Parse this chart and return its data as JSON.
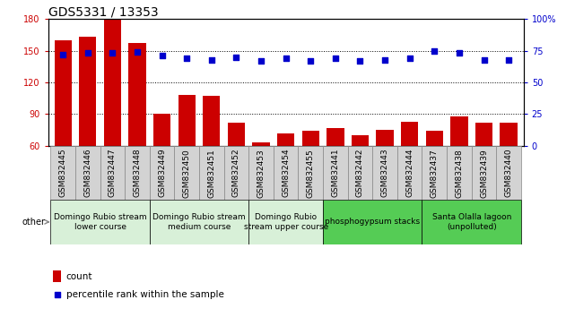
{
  "title": "GDS5331 / 13353",
  "samples": [
    "GSM832445",
    "GSM832446",
    "GSM832447",
    "GSM832448",
    "GSM832449",
    "GSM832450",
    "GSM832451",
    "GSM832452",
    "GSM832453",
    "GSM832454",
    "GSM832455",
    "GSM832441",
    "GSM832442",
    "GSM832443",
    "GSM832444",
    "GSM832437",
    "GSM832438",
    "GSM832439",
    "GSM832440"
  ],
  "counts": [
    160,
    163,
    180,
    157,
    90,
    108,
    107,
    82,
    63,
    72,
    74,
    77,
    70,
    75,
    83,
    74,
    88,
    82,
    82
  ],
  "percentiles": [
    72,
    73,
    73,
    74,
    71,
    69,
    68,
    70,
    67,
    69,
    67,
    69,
    67,
    68,
    69,
    75,
    73,
    68,
    68
  ],
  "ylim_left": [
    60,
    180
  ],
  "ylim_right": [
    0,
    100
  ],
  "yticks_left": [
    60,
    90,
    120,
    150,
    180
  ],
  "yticks_right": [
    0,
    25,
    50,
    75,
    100
  ],
  "groups": [
    {
      "label": "Domingo Rubio stream\nlower course",
      "start": 0,
      "end": 3,
      "color": "#d8f0d8"
    },
    {
      "label": "Domingo Rubio stream\nmedium course",
      "start": 4,
      "end": 7,
      "color": "#d8f0d8"
    },
    {
      "label": "Domingo Rubio\nstream upper course",
      "start": 8,
      "end": 10,
      "color": "#d8f0d8"
    },
    {
      "label": "phosphogypsum stacks",
      "start": 11,
      "end": 14,
      "color": "#55cc55"
    },
    {
      "label": "Santa Olalla lagoon\n(unpolluted)",
      "start": 15,
      "end": 18,
      "color": "#55cc55"
    }
  ],
  "bar_color": "#cc0000",
  "dot_color": "#0000cc",
  "tick_color_left": "#cc0000",
  "tick_color_right": "#0000cc",
  "title_fontsize": 10,
  "axis_fontsize": 7,
  "tick_fontsize": 6.5,
  "legend_fontsize": 7.5,
  "group_fontsize": 6.5,
  "other_label": "other",
  "sample_cell_color": "#d3d3d3",
  "sample_cell_edge": "#888888"
}
